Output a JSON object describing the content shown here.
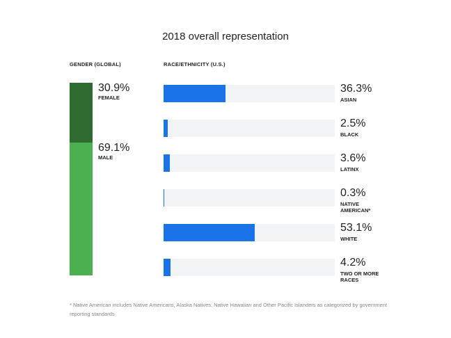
{
  "chart_data": {
    "type": "bar",
    "title": "2018 overall representation",
    "gender": {
      "label": "GENDER (GLOBAL)",
      "segments": [
        {
          "name": "FEMALE",
          "value": 30.9,
          "display": "30.9%",
          "color": "#2e6b30"
        },
        {
          "name": "MALE",
          "value": 69.1,
          "display": "69.1%",
          "color": "#4caf50"
        }
      ]
    },
    "race": {
      "label": "RACE/ETHNICITY  (U.S.)",
      "max": 100,
      "bar_color": "#1a73e8",
      "track_color": "#f1f3f4",
      "categories": [
        "ASIAN",
        "BLACK",
        "LATINX",
        "NATIVE AMERICAN*",
        "WHITE",
        "TWO OR MORE RACES"
      ],
      "values": [
        36.3,
        2.5,
        3.6,
        0.3,
        53.1,
        4.2
      ],
      "displays": [
        "36.3%",
        "2.5%",
        "3.6%",
        "0.3%",
        "53.1%",
        "4.2%"
      ]
    },
    "footnote": "* Native American includes Native Americans, Alaska Natives, Native Hawaiian and Other Pacific Islanders as categorized by government reporting standards"
  }
}
